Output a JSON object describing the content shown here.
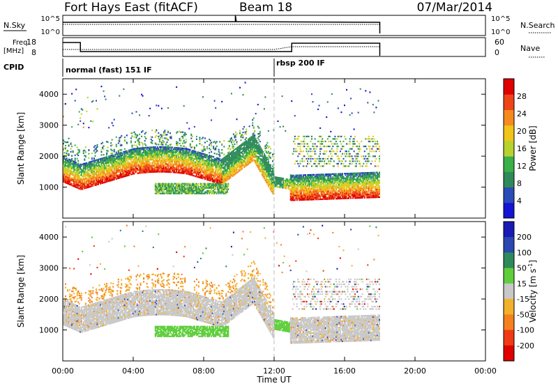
{
  "header": {
    "station": "Fort Hays East (fitACF)",
    "beam": "Beam 18",
    "date": "07/Mar/2014"
  },
  "small_panels": {
    "nsky_label": "N.Sky",
    "nsky_ticks": [
      "10^5",
      "10^0"
    ],
    "nsearch_label": "N.Search",
    "nsearch_ticks": [
      "10^5",
      "10^0"
    ],
    "freq_label_1": "Freq.",
    "freq_label_2": "[MHz]",
    "freq_ticks": [
      "18",
      "8"
    ],
    "nave_label": "Nave",
    "nave_ticks": [
      "60",
      "0"
    ],
    "cpid_label": "CPID"
  },
  "cpid_segments": [
    {
      "start_hour": 0,
      "label": "normal (fast) 151 IF"
    },
    {
      "start_hour": 12,
      "label": "rbsp 200 IF"
    }
  ],
  "chart_data": [
    {
      "type": "heatmap",
      "title": "",
      "ylabel": "Slant Range [km]",
      "xlabel": "",
      "xlim": [
        0,
        24
      ],
      "ylim": [
        0,
        4500
      ],
      "yticks": [
        1000,
        2000,
        3000,
        4000
      ],
      "colorbar": {
        "label": "Power [dB]",
        "ticks": [
          4,
          8,
          12,
          16,
          20,
          24,
          28
        ],
        "range": [
          0,
          32
        ],
        "colors": [
          "#1414d2",
          "#2b4bb8",
          "#2e8a5a",
          "#39b048",
          "#b7d22e",
          "#f0c419",
          "#f58a1f",
          "#ef4418",
          "#e00000"
        ]
      }
    },
    {
      "type": "heatmap",
      "title": "",
      "ylabel": "Slant Range [km]",
      "xlabel": "Time UT",
      "xlim": [
        0,
        24
      ],
      "ylim": [
        0,
        4500
      ],
      "yticks": [
        1000,
        2000,
        3000,
        4000
      ],
      "xticks": [
        "00:00",
        "04:00",
        "08:00",
        "12:00",
        "16:00",
        "20:00",
        "00:00"
      ],
      "colorbar": {
        "label": "Velocity [m s",
        "label_sup": "-1",
        "label_end": "]",
        "ticks": [
          "200",
          "100",
          "50",
          "15",
          "-15",
          "-50",
          "-100",
          "-200"
        ],
        "colors": [
          "#1a1ab4",
          "#2a48b0",
          "#2e8a5a",
          "#5fce3c",
          "#c8c8c8",
          "#f2b12c",
          "#f5801e",
          "#ef3a16",
          "#e00000"
        ]
      }
    }
  ]
}
